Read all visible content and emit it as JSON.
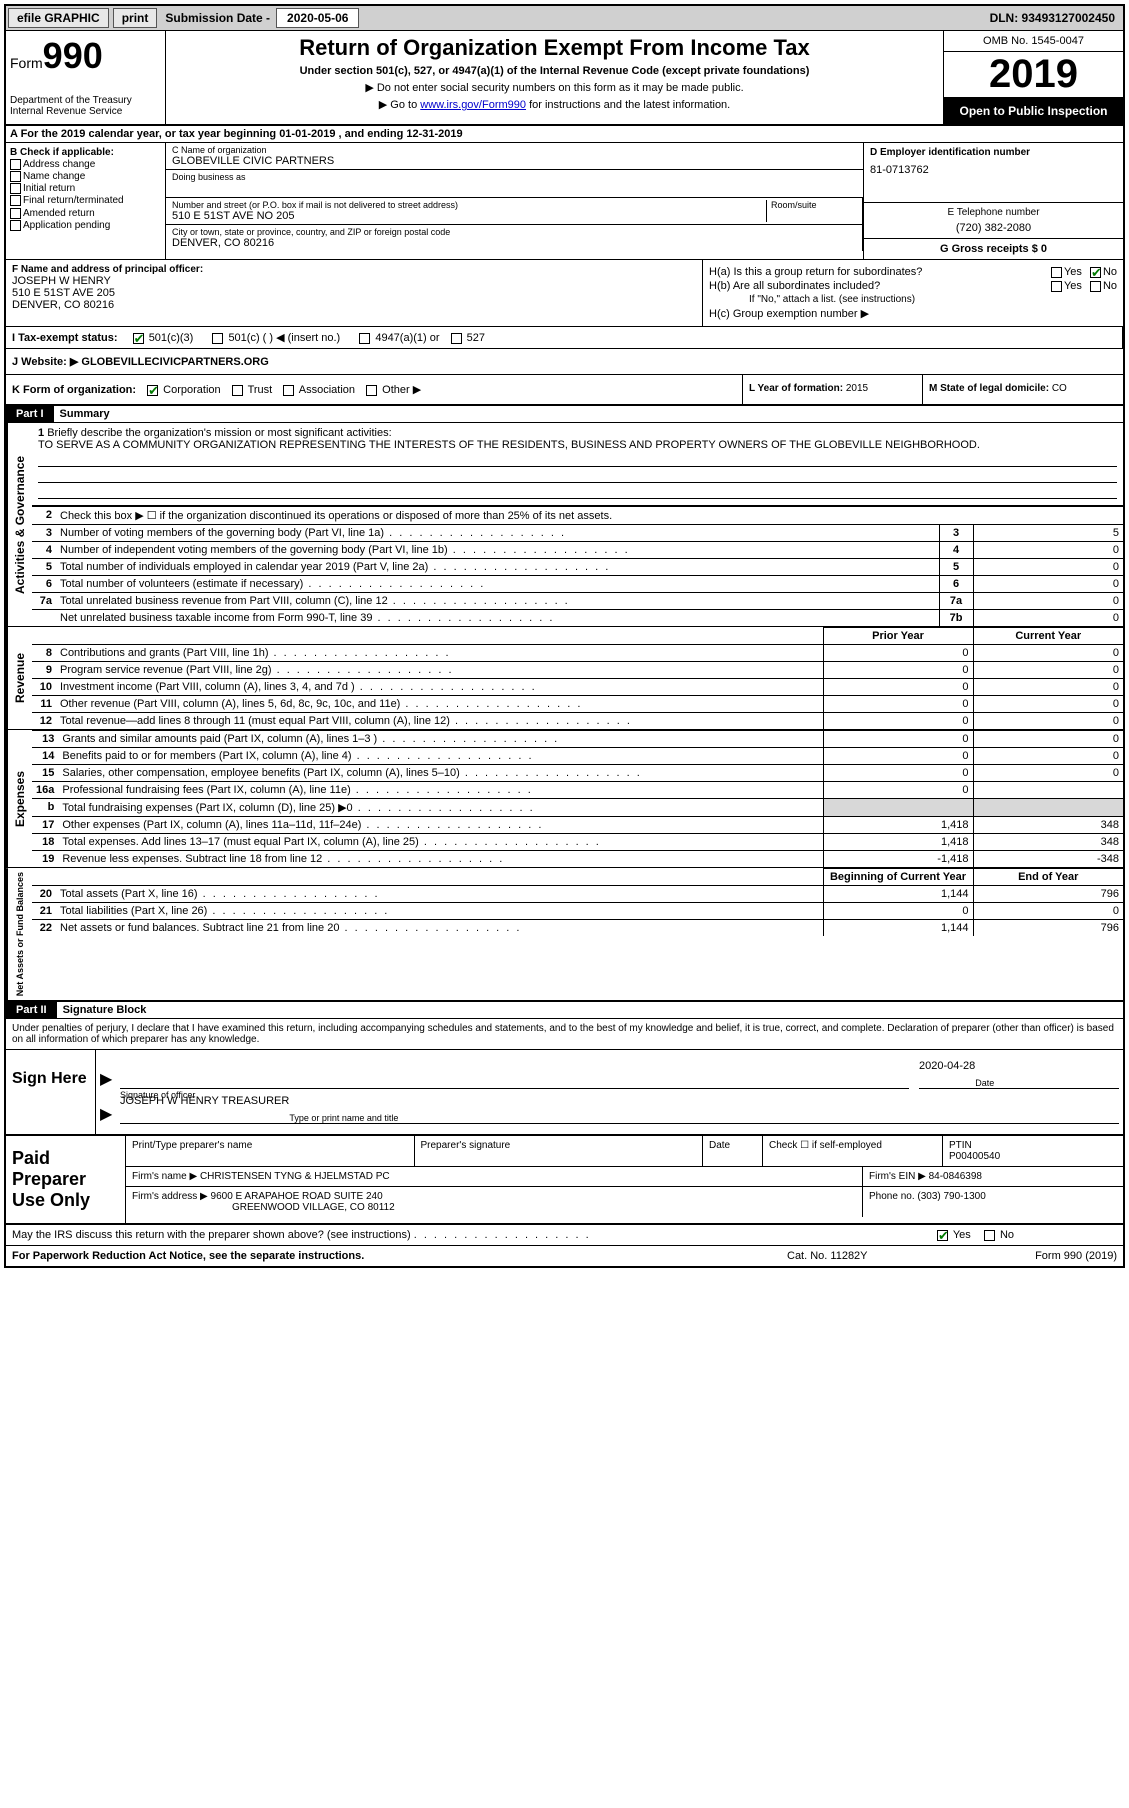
{
  "topbar": {
    "efile": "efile GRAPHIC",
    "print": "print",
    "subm_label": "Submission Date - ",
    "subm_date": "2020-05-06",
    "dln": "DLN: 93493127002450"
  },
  "header": {
    "form_word": "Form",
    "form_num": "990",
    "dept": "Department of the Treasury",
    "irs": "Internal Revenue Service",
    "title": "Return of Organization Exempt From Income Tax",
    "sub": "Under section 501(c), 527, or 4947(a)(1) of the Internal Revenue Code (except private foundations)",
    "note1": "▶ Do not enter social security numbers on this form as it may be made public.",
    "note2_pre": "▶ Go to ",
    "note2_link": "www.irs.gov/Form990",
    "note2_post": " for instructions and the latest information.",
    "omb": "OMB No. 1545-0047",
    "year": "2019",
    "openpub": "Open to Public Inspection"
  },
  "row_a": "A For the 2019 calendar year, or tax year beginning 01-01-2019    , and ending 12-31-2019",
  "b": {
    "label": "B Check if applicable:",
    "addr": "Address change",
    "name": "Name change",
    "init": "Initial return",
    "final": "Final return/terminated",
    "amend": "Amended return",
    "app": "Application pending"
  },
  "c": {
    "name_label": "C Name of organization",
    "name": "GLOBEVILLE CIVIC PARTNERS",
    "dba_label": "Doing business as",
    "street_label": "Number and street (or P.O. box if mail is not delivered to street address)",
    "street": "510 E 51ST AVE NO 205",
    "room_label": "Room/suite",
    "city_label": "City or town, state or province, country, and ZIP or foreign postal code",
    "city": "DENVER, CO  80216"
  },
  "d": {
    "label": "D Employer identification number",
    "value": "81-0713762"
  },
  "e": {
    "label": "E Telephone number",
    "value": "(720) 382-2080"
  },
  "g": {
    "label": "G Gross receipts $ ",
    "value": "0"
  },
  "f": {
    "label": "F  Name and address of principal officer:",
    "line1": "JOSEPH W HENRY",
    "line2": "510 E 51ST AVE 205",
    "line3": "DENVER, CO  80216"
  },
  "h": {
    "a_label": "H(a)  Is this a group return for subordinates?",
    "b_label": "H(b)  Are all subordinates included?",
    "b_note": "If \"No,\" attach a list. (see instructions)",
    "c_label": "H(c)  Group exemption number ▶",
    "yes": "Yes",
    "no": "No"
  },
  "i": {
    "label": "I  Tax-exempt status:",
    "o1": "501(c)(3)",
    "o2": "501(c) (   ) ◀ (insert no.)",
    "o3": "4947(a)(1) or",
    "o4": "527"
  },
  "j": {
    "label": "J   Website: ▶ ",
    "value": "GLOBEVILLECIVICPARTNERS.ORG"
  },
  "k": {
    "label": "K Form of organization:",
    "corp": "Corporation",
    "trust": "Trust",
    "assoc": "Association",
    "other": "Other ▶"
  },
  "l": {
    "label": "L Year of formation: ",
    "value": "2015"
  },
  "m": {
    "label": "M State of legal domicile: ",
    "value": "CO"
  },
  "part1": {
    "hdr": "Part I",
    "title": "Summary"
  },
  "line1": {
    "num": "1",
    "label": "Briefly describe the organization's mission or most significant activities:",
    "text": "TO SERVE AS A COMMUNITY ORGANIZATION REPRESENTING THE INTERESTS OF THE RESIDENTS, BUSINESS AND PROPERTY OWNERS OF THE GLOBEVILLE NEIGHBORHOOD."
  },
  "vtabs": {
    "gov": "Activities & Governance",
    "rev": "Revenue",
    "exp": "Expenses",
    "net": "Net Assets or Fund Balances"
  },
  "lines_gov": [
    {
      "n": "2",
      "d": "Check this box ▶ ☐ if the organization discontinued its operations or disposed of more than 25% of its net assets."
    },
    {
      "n": "3",
      "d": "Number of voting members of the governing body (Part VI, line 1a)",
      "box": "3",
      "v": "5"
    },
    {
      "n": "4",
      "d": "Number of independent voting members of the governing body (Part VI, line 1b)",
      "box": "4",
      "v": "0"
    },
    {
      "n": "5",
      "d": "Total number of individuals employed in calendar year 2019 (Part V, line 2a)",
      "box": "5",
      "v": "0"
    },
    {
      "n": "6",
      "d": "Total number of volunteers (estimate if necessary)",
      "box": "6",
      "v": "0"
    },
    {
      "n": "7a",
      "d": "Total unrelated business revenue from Part VIII, column (C), line 12",
      "box": "7a",
      "v": "0"
    },
    {
      "n": "",
      "d": "Net unrelated business taxable income from Form 990-T, line 39",
      "box": "7b",
      "v": "0"
    }
  ],
  "col_hdrs": {
    "prior": "Prior Year",
    "current": "Current Year",
    "begin": "Beginning of Current Year",
    "end": "End of Year"
  },
  "lines_rev": [
    {
      "n": "8",
      "d": "Contributions and grants (Part VIII, line 1h)",
      "p": "0",
      "c": "0"
    },
    {
      "n": "9",
      "d": "Program service revenue (Part VIII, line 2g)",
      "p": "0",
      "c": "0"
    },
    {
      "n": "10",
      "d": "Investment income (Part VIII, column (A), lines 3, 4, and 7d )",
      "p": "0",
      "c": "0"
    },
    {
      "n": "11",
      "d": "Other revenue (Part VIII, column (A), lines 5, 6d, 8c, 9c, 10c, and 11e)",
      "p": "0",
      "c": "0"
    },
    {
      "n": "12",
      "d": "Total revenue—add lines 8 through 11 (must equal Part VIII, column (A), line 12)",
      "p": "0",
      "c": "0"
    }
  ],
  "lines_exp": [
    {
      "n": "13",
      "d": "Grants and similar amounts paid (Part IX, column (A), lines 1–3 )",
      "p": "0",
      "c": "0"
    },
    {
      "n": "14",
      "d": "Benefits paid to or for members (Part IX, column (A), line 4)",
      "p": "0",
      "c": "0"
    },
    {
      "n": "15",
      "d": "Salaries, other compensation, employee benefits (Part IX, column (A), lines 5–10)",
      "p": "0",
      "c": "0"
    },
    {
      "n": "16a",
      "d": "Professional fundraising fees (Part IX, column (A), line 11e)",
      "p": "0",
      "c": ""
    },
    {
      "n": "b",
      "d": "Total fundraising expenses (Part IX, column (D), line 25) ▶0",
      "p": "",
      "c": "",
      "shade": true
    },
    {
      "n": "17",
      "d": "Other expenses (Part IX, column (A), lines 11a–11d, 11f–24e)",
      "p": "1,418",
      "c": "348"
    },
    {
      "n": "18",
      "d": "Total expenses. Add lines 13–17 (must equal Part IX, column (A), line 25)",
      "p": "1,418",
      "c": "348"
    },
    {
      "n": "19",
      "d": "Revenue less expenses. Subtract line 18 from line 12",
      "p": "-1,418",
      "c": "-348"
    }
  ],
  "lines_net": [
    {
      "n": "20",
      "d": "Total assets (Part X, line 16)",
      "p": "1,144",
      "c": "796"
    },
    {
      "n": "21",
      "d": "Total liabilities (Part X, line 26)",
      "p": "0",
      "c": "0"
    },
    {
      "n": "22",
      "d": "Net assets or fund balances. Subtract line 21 from line 20",
      "p": "1,144",
      "c": "796"
    }
  ],
  "part2": {
    "hdr": "Part II",
    "title": "Signature Block"
  },
  "decl": "Under penalties of perjury, I declare that I have examined this return, including accompanying schedules and statements, and to the best of my knowledge and belief, it is true, correct, and complete. Declaration of preparer (other than officer) is based on all information of which preparer has any knowledge.",
  "sign": {
    "here": "Sign Here",
    "sig_label": "Signature of officer",
    "date_label": "Date",
    "date_val": "2020-04-28",
    "name": "JOSEPH W HENRY  TREASURER",
    "name_label": "Type or print name and title"
  },
  "paid": {
    "left": "Paid Preparer Use Only",
    "r1c1": "Print/Type preparer's name",
    "r1c2": "Preparer's signature",
    "r1c3": "Date",
    "r1c4a": "Check ☐ if self-employed",
    "r1c5l": "PTIN",
    "r1c5v": "P00400540",
    "r2l": "Firm's name    ▶ ",
    "r2v": "CHRISTENSEN TYNG & HJELMSTAD PC",
    "r2r": "Firm's EIN ▶ 84-0846398",
    "r3l": "Firm's address ▶ ",
    "r3v1": "9600 E ARAPAHOE ROAD SUITE 240",
    "r3v2": "GREENWOOD VILLAGE, CO  80112",
    "r3r": "Phone no. (303) 790-1300"
  },
  "discuss": {
    "q": "May the IRS discuss this return with the preparer shown above? (see instructions)",
    "yes": "Yes",
    "no": "No"
  },
  "footer": {
    "l": "For Paperwork Reduction Act Notice, see the separate instructions.",
    "m": "Cat. No. 11282Y",
    "r": "Form 990 (2019)"
  }
}
